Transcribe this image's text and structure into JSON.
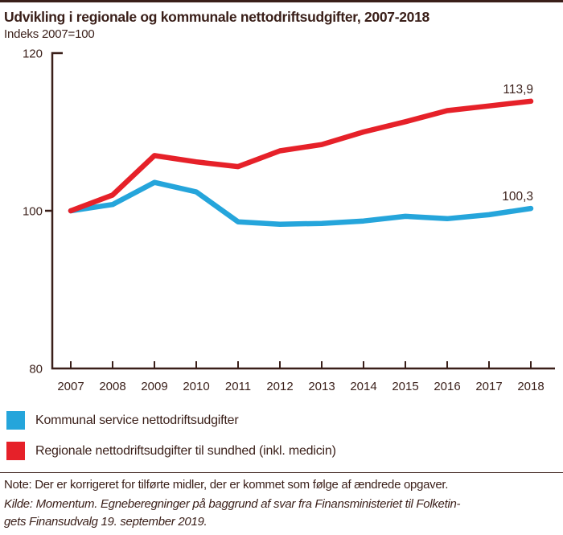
{
  "header": {
    "title": "Udvikling i regionale og kommunale nettodriftsudgifter, 2007-2018",
    "subtitle": "Indeks 2007=100"
  },
  "chart_data": {
    "type": "line",
    "categories": [
      "2007",
      "2008",
      "2009",
      "2010",
      "2011",
      "2012",
      "2013",
      "2014",
      "2015",
      "2016",
      "2017",
      "2018"
    ],
    "series": [
      {
        "name": "Kommunal service nettodriftsudgifter",
        "color": "#25A5DB",
        "values": [
          100,
          100.8,
          103.6,
          102.4,
          98.6,
          98.3,
          98.4,
          98.7,
          99.3,
          99.0,
          99.5,
          100.3
        ],
        "end_label": "100,3"
      },
      {
        "name": "Regionale nettodriftsudgifter til sundhed (inkl. medicin)",
        "color": "#E62129",
        "values": [
          100,
          102.0,
          107.0,
          106.2,
          105.6,
          107.6,
          108.4,
          110.0,
          111.3,
          112.7,
          113.3,
          113.9
        ],
        "end_label": "113,9"
      }
    ],
    "ylabel": "",
    "xlabel": "",
    "ylim": [
      80,
      120
    ],
    "yticks": [
      "80",
      "100",
      "120"
    ],
    "grid": false,
    "legend_position": "below-left",
    "axis_color": "#3A1F19"
  },
  "footer": {
    "note": "Note: Der er korrigeret for tilførte midler, der er kommet som følge af ændrede opgaver.",
    "kilde_line1": "Kilde: Momentum. Egneberegninger på baggrund af svar fra Finansministeriet til Folketin-",
    "kilde_line2": "gets Finansudvalg 19. september 2019."
  }
}
